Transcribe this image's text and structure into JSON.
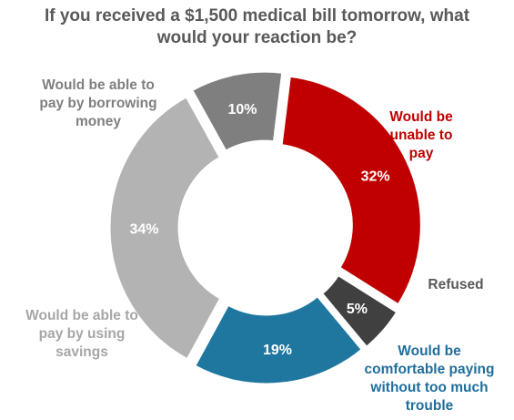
{
  "chart_data": {
    "type": "pie",
    "title_lines": [
      "If you received a $1,500 medical bill tomorrow, what",
      "would your reaction be?"
    ],
    "slices": [
      {
        "label_lines": [
          "Would be",
          "unable to",
          "pay"
        ],
        "value": 32,
        "value_label": "32%",
        "color": "#c00000",
        "label_color": "#c00000"
      },
      {
        "label_lines": [
          "Refused"
        ],
        "value": 5,
        "value_label": "5%",
        "color": "#404040",
        "label_color": "#595959"
      },
      {
        "label_lines": [
          "Would be",
          "comfortable paying",
          "without too much",
          "trouble"
        ],
        "value": 19,
        "value_label": "19%",
        "color": "#1f77a0",
        "label_color": "#1f6e9c"
      },
      {
        "label_lines": [
          "Would be able to",
          "pay by using",
          "savings"
        ],
        "value": 34,
        "value_label": "34%",
        "color": "#b3b3b3",
        "label_color": "#a6a6a6"
      },
      {
        "label_lines": [
          "Would be able to",
          "pay by borrowing",
          "money"
        ],
        "value": 10,
        "value_label": "10%",
        "color": "#7f7f7f",
        "label_color": "#7f7f7f"
      }
    ],
    "donut": true,
    "legend": "none"
  }
}
